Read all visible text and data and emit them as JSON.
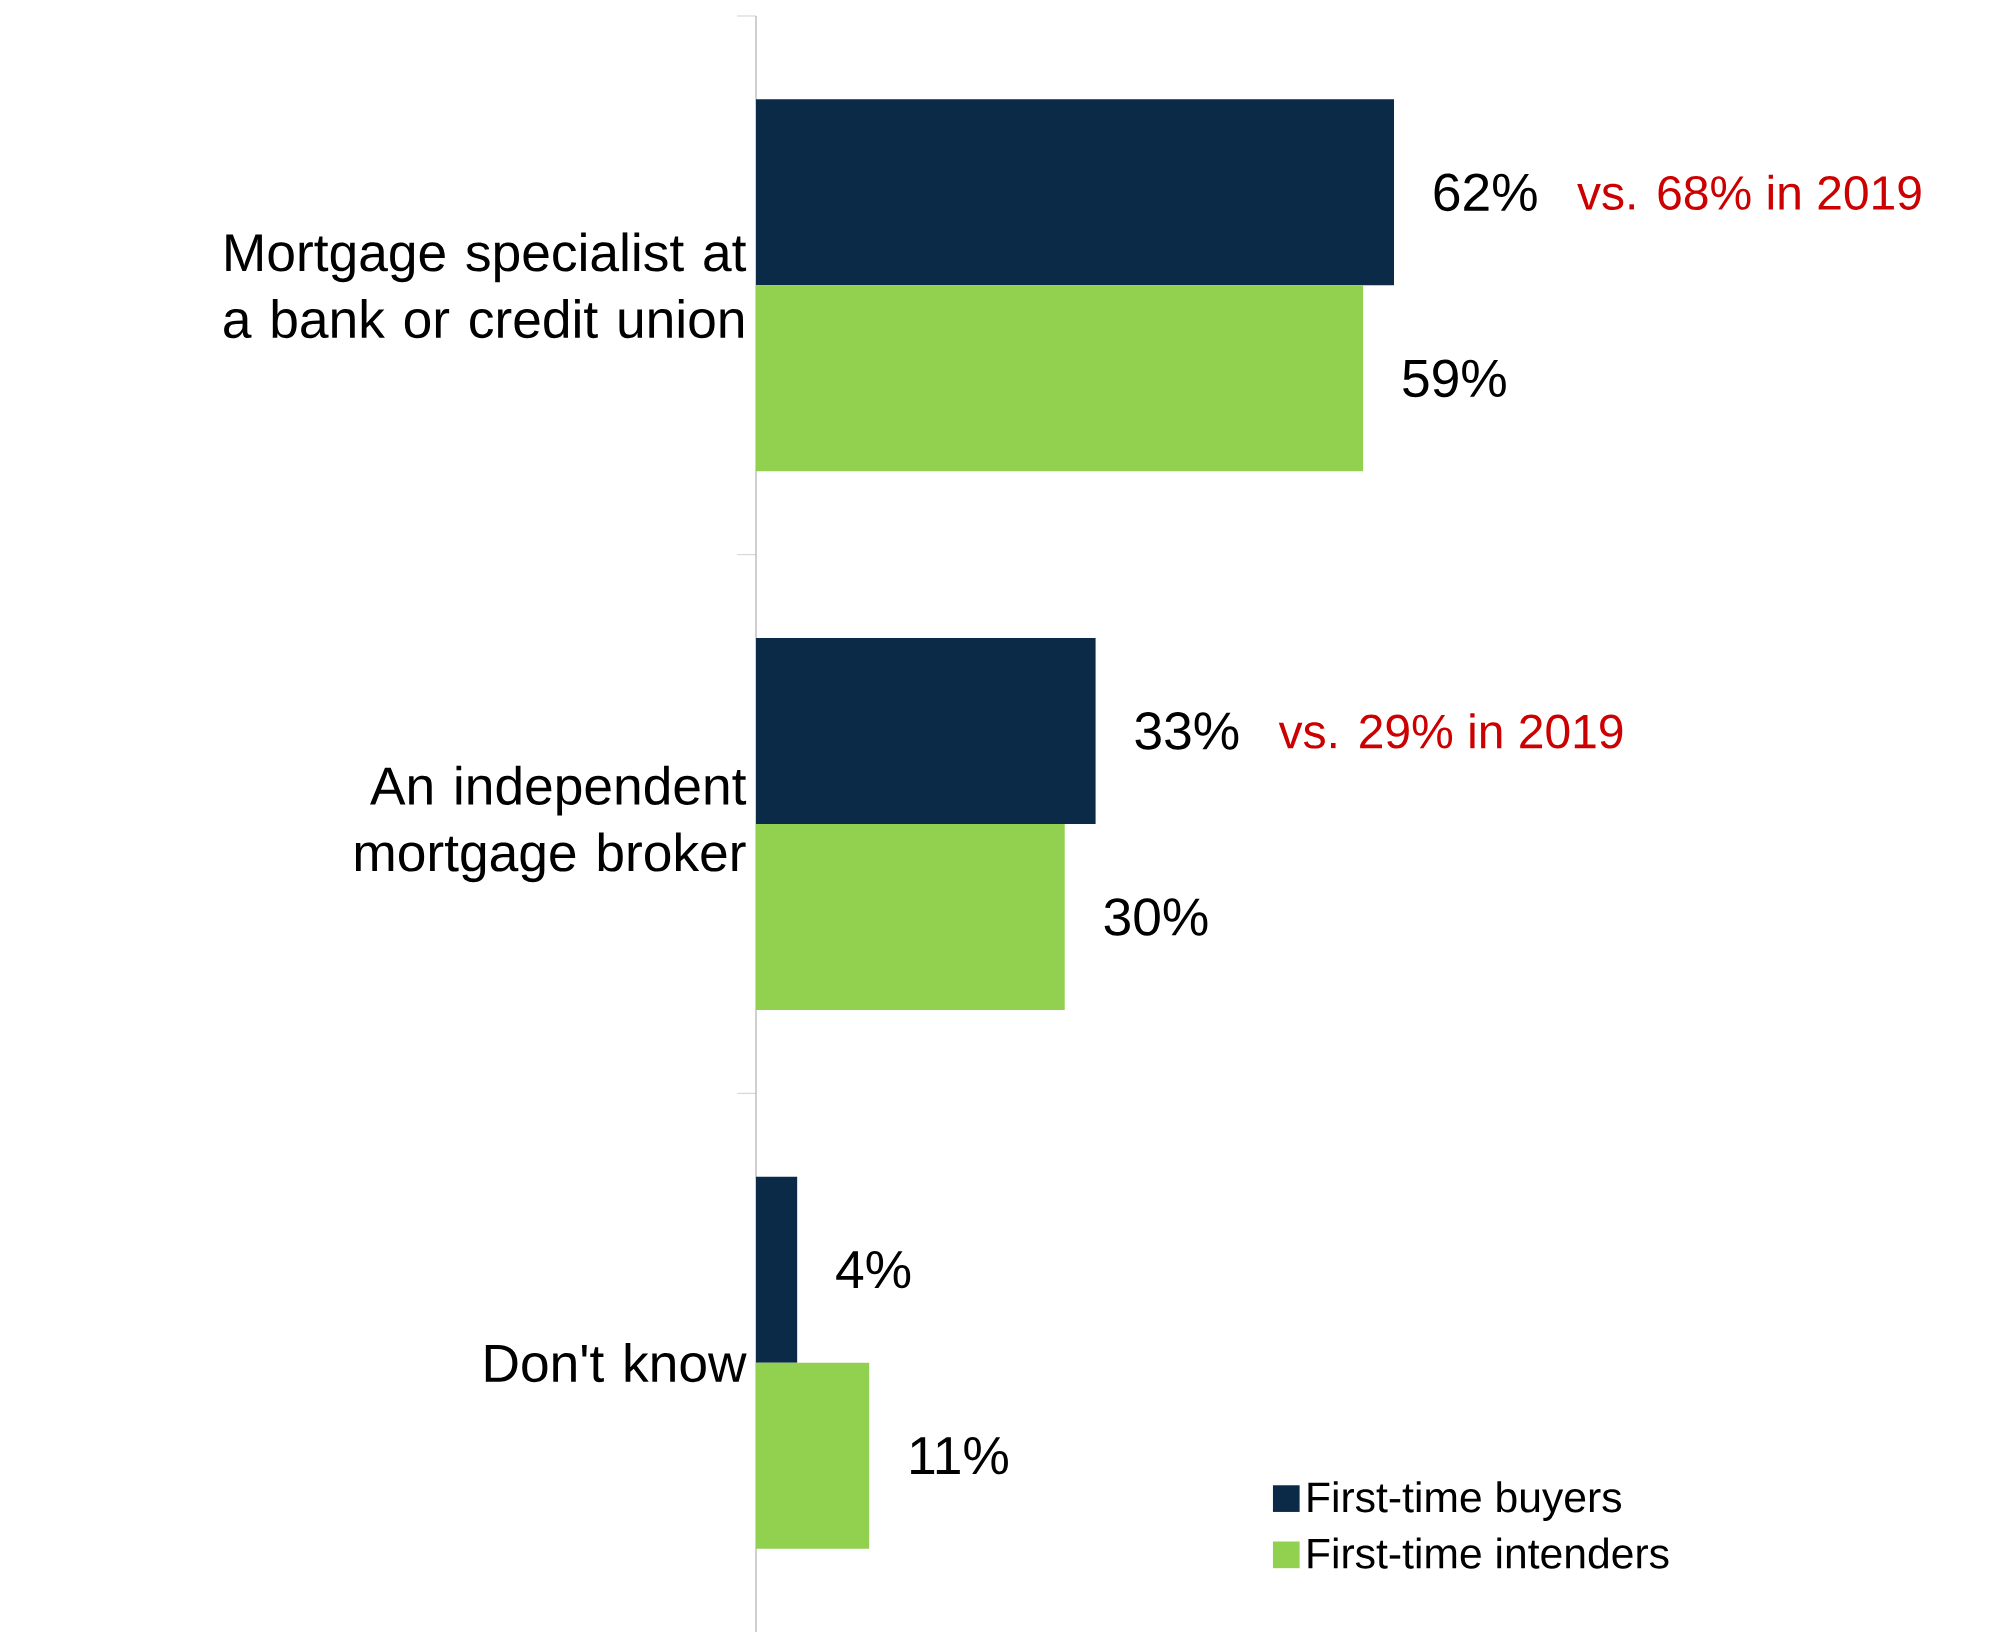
{
  "chart_data": {
    "type": "bar",
    "orientation": "horizontal",
    "categories": [
      "Mortgage specialist at a bank or credit union",
      "An independent mortgage broker",
      "Don't know"
    ],
    "series": [
      {
        "name": "First-time buyers",
        "color": "#0a2a47",
        "values": [
          62,
          33,
          4
        ],
        "value_labels": [
          "62%",
          "33%",
          "4%"
        ]
      },
      {
        "name": "First-time intenders",
        "color": "#92d050",
        "values": [
          59,
          30,
          11
        ],
        "value_labels": [
          "59%",
          "30%",
          "11%"
        ]
      }
    ],
    "annotations": [
      "vs. 68% in 2019",
      "vs. 29% in 2019"
    ],
    "tick_labels": "y",
    "legend": "bottom right"
  }
}
